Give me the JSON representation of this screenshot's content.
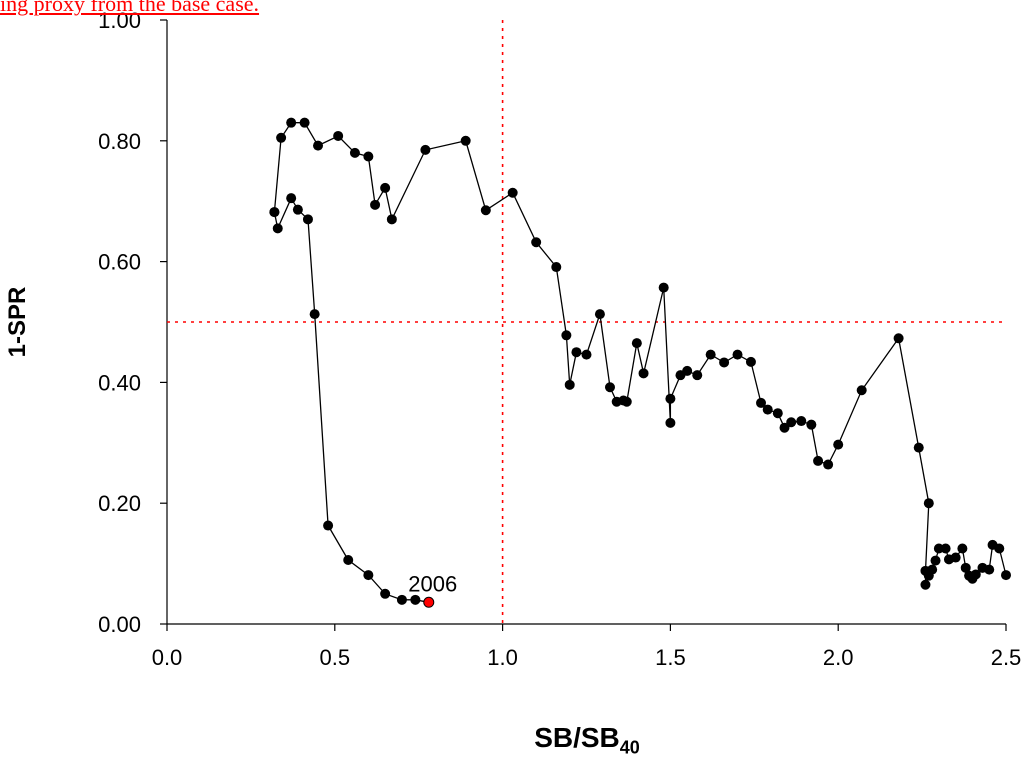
{
  "chart_data": {
    "type": "line",
    "top_note": "ing proxy from the base case.",
    "xlabel_main": "SB/SB",
    "xlabel_sub": "40",
    "ylabel": "1-SPR",
    "xlim": [
      0.0,
      2.5
    ],
    "ylim": [
      0.0,
      1.0
    ],
    "xticks": [
      "0.0",
      "0.5",
      "1.0",
      "1.5",
      "2.0",
      "2.5"
    ],
    "yticks": [
      "0.00",
      "0.20",
      "0.40",
      "0.60",
      "0.80",
      "1.00"
    ],
    "reference_lines": {
      "x": 1.0,
      "y": 0.5,
      "color": "#ff0000",
      "style": "dotted"
    },
    "annotation": {
      "text": "2006",
      "x": 0.78,
      "y": 0.036,
      "color": "#ff0000"
    },
    "series": [
      {
        "color": "#000000",
        "points": [
          [
            0.32,
            0.682
          ],
          [
            0.34,
            0.805
          ],
          [
            0.37,
            0.83
          ],
          [
            0.41,
            0.83
          ],
          [
            0.45,
            0.792
          ],
          [
            0.51,
            0.808
          ],
          [
            0.56,
            0.78
          ],
          [
            0.6,
            0.774
          ],
          [
            0.62,
            0.694
          ],
          [
            0.65,
            0.722
          ],
          [
            0.67,
            0.67
          ],
          [
            0.77,
            0.785
          ],
          [
            0.89,
            0.8
          ],
          [
            0.95,
            0.685
          ],
          [
            1.03,
            0.714
          ],
          [
            1.1,
            0.632
          ],
          [
            1.16,
            0.591
          ],
          [
            1.19,
            0.478
          ],
          [
            1.2,
            0.396
          ],
          [
            1.22,
            0.45
          ],
          [
            1.25,
            0.446
          ],
          [
            1.29,
            0.513
          ],
          [
            1.32,
            0.392
          ],
          [
            1.34,
            0.368
          ],
          [
            1.36,
            0.37
          ],
          [
            1.37,
            0.368
          ],
          [
            1.4,
            0.465
          ],
          [
            1.42,
            0.415
          ],
          [
            1.48,
            0.557
          ],
          [
            1.5,
            0.333
          ],
          [
            1.5,
            0.373
          ],
          [
            1.53,
            0.412
          ],
          [
            1.55,
            0.419
          ],
          [
            1.58,
            0.412
          ],
          [
            1.62,
            0.446
          ],
          [
            1.66,
            0.433
          ],
          [
            1.7,
            0.446
          ],
          [
            1.74,
            0.434
          ],
          [
            1.77,
            0.366
          ],
          [
            1.79,
            0.355
          ],
          [
            1.82,
            0.349
          ],
          [
            1.84,
            0.325
          ],
          [
            1.86,
            0.334
          ],
          [
            1.89,
            0.336
          ],
          [
            1.92,
            0.33
          ],
          [
            1.94,
            0.27
          ],
          [
            1.97,
            0.264
          ],
          [
            2.0,
            0.297
          ],
          [
            2.07,
            0.387
          ],
          [
            2.18,
            0.473
          ],
          [
            2.24,
            0.292
          ],
          [
            2.27,
            0.2
          ],
          [
            2.26,
            0.088
          ],
          [
            2.26,
            0.065
          ],
          [
            2.27,
            0.08
          ],
          [
            2.28,
            0.09
          ],
          [
            2.29,
            0.105
          ],
          [
            2.3,
            0.125
          ],
          [
            2.32,
            0.125
          ],
          [
            2.33,
            0.107
          ],
          [
            2.35,
            0.11
          ],
          [
            2.37,
            0.125
          ],
          [
            2.38,
            0.093
          ],
          [
            2.39,
            0.08
          ],
          [
            2.4,
            0.075
          ],
          [
            2.41,
            0.082
          ],
          [
            2.43,
            0.093
          ],
          [
            2.45,
            0.09
          ],
          [
            2.46,
            0.131
          ],
          [
            2.48,
            0.125
          ],
          [
            2.5,
            0.081
          ]
        ]
      },
      {
        "color": "#000000",
        "points": [
          [
            0.32,
            0.682
          ],
          [
            0.33,
            0.655
          ],
          [
            0.37,
            0.705
          ],
          [
            0.39,
            0.686
          ],
          [
            0.42,
            0.67
          ],
          [
            0.44,
            0.513
          ],
          [
            0.48,
            0.163
          ],
          [
            0.54,
            0.106
          ],
          [
            0.6,
            0.081
          ],
          [
            0.65,
            0.05
          ],
          [
            0.7,
            0.04
          ],
          [
            0.74,
            0.04
          ],
          [
            0.78,
            0.036
          ]
        ]
      }
    ],
    "highlight_point": {
      "x": 0.78,
      "y": 0.036,
      "color": "#ff0000"
    }
  }
}
